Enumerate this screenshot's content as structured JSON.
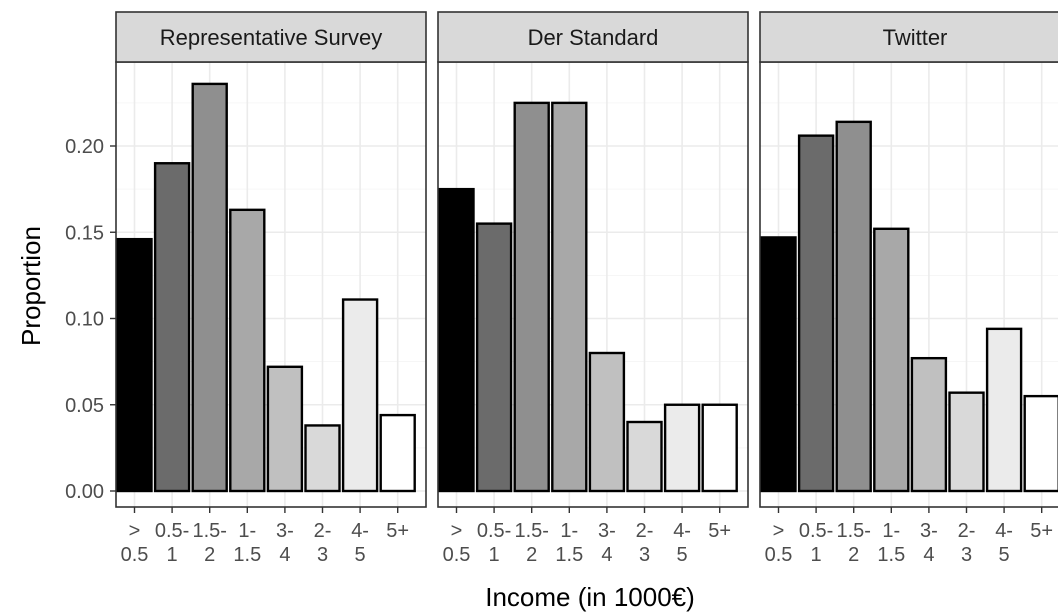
{
  "chart_data": {
    "type": "bar",
    "xlabel": "Income (in 1000€)",
    "ylabel": "Proportion",
    "ylim": [
      0,
      0.24
    ],
    "yticks": [
      "0.00",
      "0.05",
      "0.10",
      "0.15",
      "0.20"
    ],
    "grid": true,
    "categories": [
      {
        "line1": ">",
        "line2": "0.5"
      },
      {
        "line1": "0.5-",
        "line2": "1"
      },
      {
        "line1": "1.5-",
        "line2": "2"
      },
      {
        "line1": "1-",
        "line2": "1.5"
      },
      {
        "line1": "3-",
        "line2": "4"
      },
      {
        "line1": "2-",
        "line2": "3"
      },
      {
        "line1": "4-",
        "line2": "5"
      },
      {
        "line1": "5+",
        "line2": ""
      }
    ],
    "bar_fills": [
      "#000000",
      "#6b6b6b",
      "#8f8f8f",
      "#a8a8a8",
      "#c0c0c0",
      "#d9d9d9",
      "#ebebeb",
      "#ffffff"
    ],
    "panels": [
      {
        "name": "Representative Survey",
        "values": [
          0.146,
          0.19,
          0.236,
          0.163,
          0.072,
          0.038,
          0.111,
          0.044
        ]
      },
      {
        "name": "Der Standard",
        "values": [
          0.175,
          0.155,
          0.225,
          0.225,
          0.08,
          0.04,
          0.05,
          0.05
        ]
      },
      {
        "name": "Twitter",
        "values": [
          0.147,
          0.206,
          0.214,
          0.152,
          0.077,
          0.057,
          0.094,
          0.055
        ]
      }
    ]
  }
}
